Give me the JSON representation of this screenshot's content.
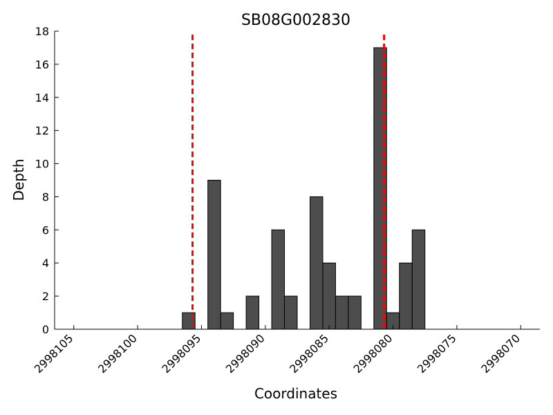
{
  "chart_data": {
    "type": "bar",
    "title": "SB08G002830",
    "xlabel": "Coordinates",
    "ylabel": "Depth",
    "x_axis_reversed": true,
    "xlim": [
      2998106.5,
      2998068.5
    ],
    "ylim": [
      0,
      18
    ],
    "x_ticks": [
      2998105,
      2998100,
      2998095,
      2998090,
      2998085,
      2998080,
      2998075,
      2998070
    ],
    "x_tick_labels": [
      "2998105",
      "2998100",
      "2998095",
      "2998090",
      "2998085",
      "2998080",
      "2998075",
      "2998070"
    ],
    "y_ticks": [
      0,
      2,
      4,
      6,
      8,
      10,
      12,
      14,
      16,
      18
    ],
    "y_tick_labels": [
      "0",
      "2",
      "4",
      "6",
      "8",
      "10",
      "12",
      "14",
      "16",
      "18"
    ],
    "grid": false,
    "bar_color": "#4d4d4d",
    "bar_edge_color": "#000000",
    "bars": [
      {
        "x": 2998096,
        "value": 1
      },
      {
        "x": 2998094,
        "value": 9
      },
      {
        "x": 2998093,
        "value": 1
      },
      {
        "x": 2998091,
        "value": 2
      },
      {
        "x": 2998089,
        "value": 6
      },
      {
        "x": 2998088,
        "value": 2
      },
      {
        "x": 2998086,
        "value": 8
      },
      {
        "x": 2998085,
        "value": 4
      },
      {
        "x": 2998084,
        "value": 2
      },
      {
        "x": 2998083,
        "value": 2
      },
      {
        "x": 2998081,
        "value": 17
      },
      {
        "x": 2998080,
        "value": 1
      },
      {
        "x": 2998079,
        "value": 4
      },
      {
        "x": 2998078,
        "value": 6
      }
    ],
    "reference_lines": [
      {
        "x": 2998095.7,
        "color": "#ff0000",
        "style": "dashed"
      },
      {
        "x": 2998080.7,
        "color": "#ff0000",
        "style": "dashed"
      }
    ]
  }
}
